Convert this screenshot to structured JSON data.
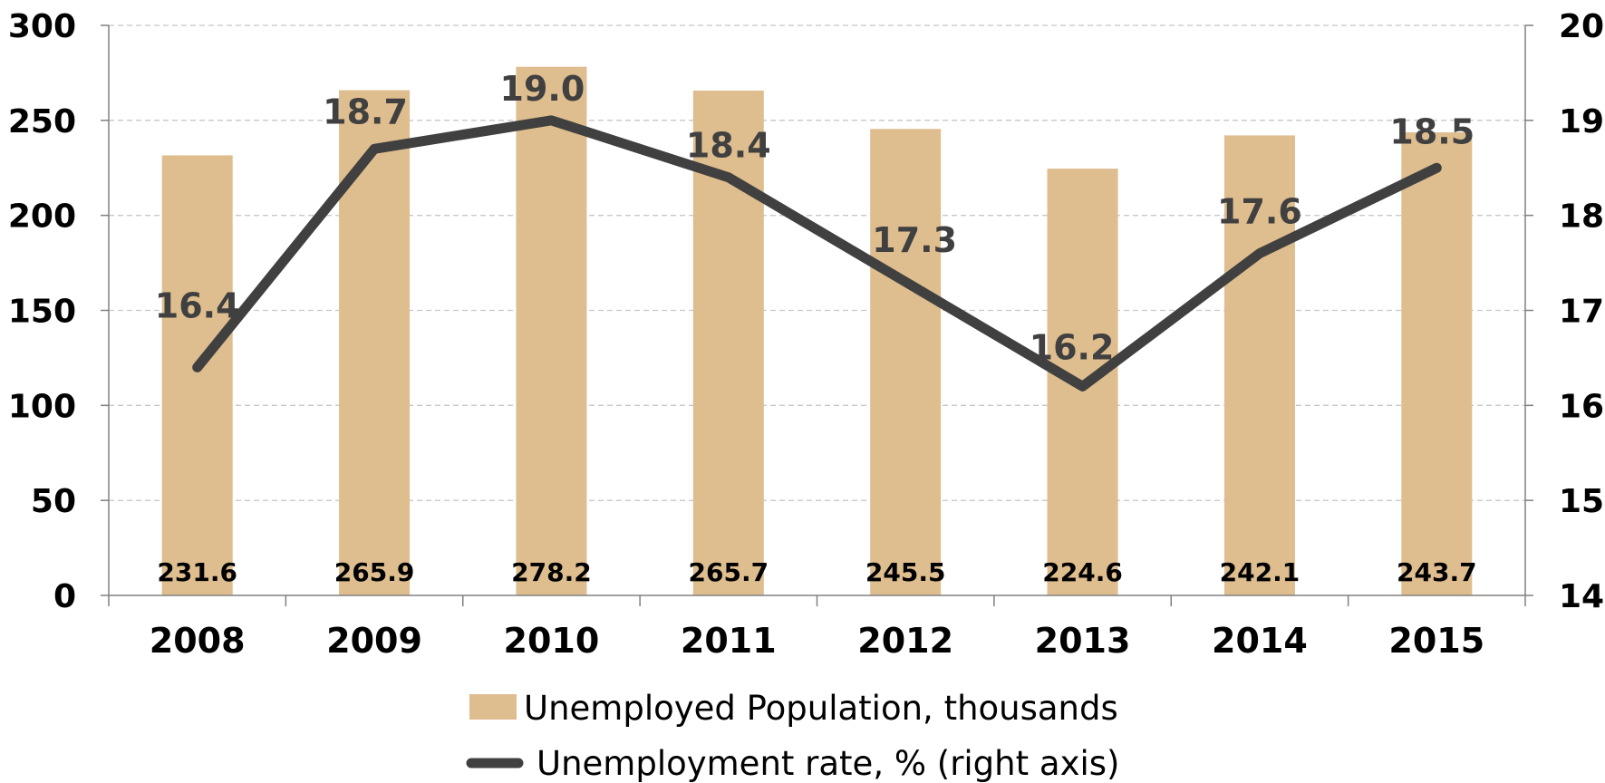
{
  "chart_data": {
    "type": "bar",
    "categories": [
      "2008",
      "2009",
      "2010",
      "2011",
      "2012",
      "2013",
      "2014",
      "2015"
    ],
    "series": [
      {
        "name": "Unemployed Population, thousands",
        "type": "bar",
        "axis": "left",
        "values": [
          231.6,
          265.9,
          278.2,
          265.7,
          245.5,
          224.6,
          242.1,
          243.7
        ],
        "labels": [
          "231.6",
          "265.9",
          "278.2",
          "265.7",
          "245.5",
          "224.6",
          "242.1",
          "243.7"
        ],
        "color": "#DEBD8E"
      },
      {
        "name": "Unemployment rate, % (right axis)",
        "type": "line",
        "axis": "right",
        "values": [
          16.4,
          18.7,
          19.0,
          18.4,
          17.3,
          16.2,
          17.6,
          18.5
        ],
        "labels": [
          "16.4",
          "18.7",
          "19.0",
          "18.4",
          "17.3",
          "16.2",
          "17.6",
          "18.5"
        ],
        "color": "#404040"
      }
    ],
    "left_axis": {
      "min": 0,
      "max": 300,
      "ticks": [
        "0",
        "50",
        "100",
        "150",
        "200",
        "250",
        "300"
      ]
    },
    "right_axis": {
      "min": 14,
      "max": 20,
      "ticks": [
        "14",
        "15",
        "16",
        "17",
        "18",
        "19",
        "20"
      ]
    },
    "grid": "horizontal-dashed",
    "legend_position": "bottom",
    "title": "",
    "xlabel": "",
    "ylabel": ""
  }
}
